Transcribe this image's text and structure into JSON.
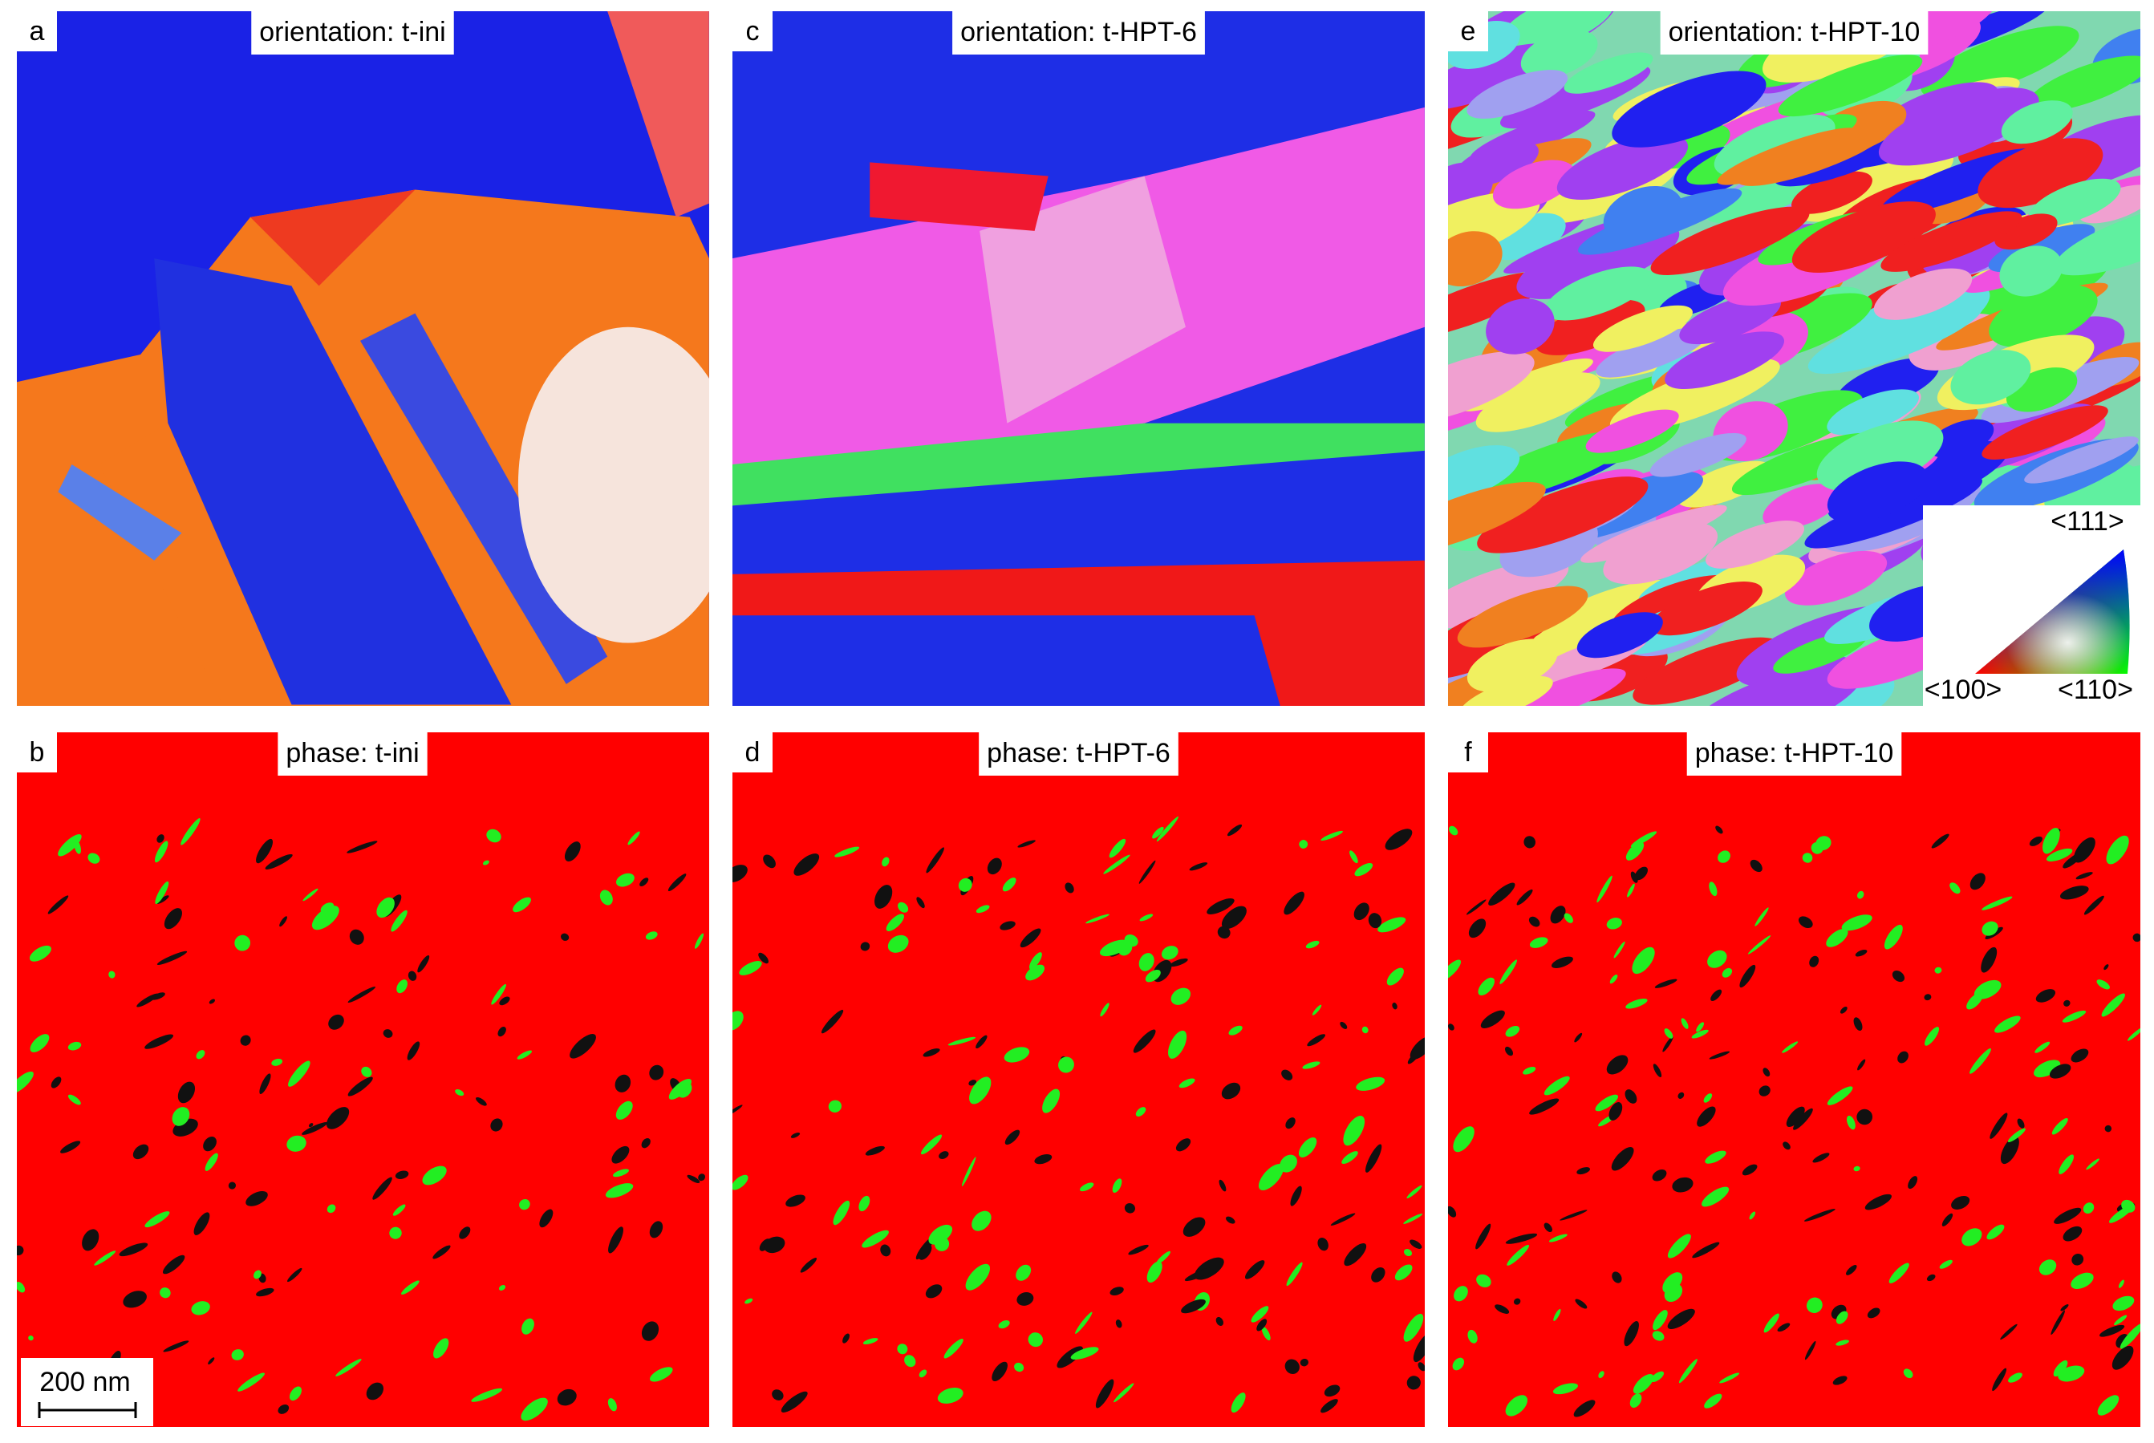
{
  "panels": [
    {
      "letter": "a",
      "label": "orientation: t-ini"
    },
    {
      "letter": "c",
      "label": "orientation: t-HPT-6"
    },
    {
      "letter": "e",
      "label": "orientation: t-HPT-10"
    },
    {
      "letter": "b",
      "label": "phase: t-ini"
    },
    {
      "letter": "d",
      "label": "phase: t-HPT-6"
    },
    {
      "letter": "f",
      "label": "phase: t-HPT-10"
    }
  ],
  "legend": {
    "top": "<111>",
    "left": "<100>",
    "right": "<110>"
  },
  "scale_bar": "200 nm"
}
